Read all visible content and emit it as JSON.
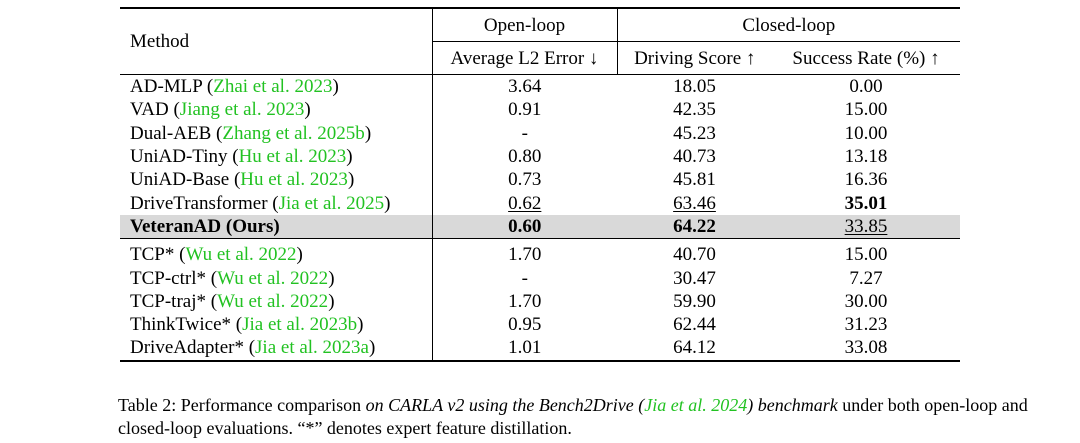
{
  "table": {
    "header": {
      "method": "Method",
      "open_loop": "Open-loop",
      "closed_loop": "Closed-loop",
      "columns": [
        "Average L2 Error ↓",
        "Driving Score ↑",
        "Success Rate (%) ↑"
      ]
    },
    "rows": [
      {
        "name": "AD-MLP (",
        "cite": "Zhai et al. 2023",
        "close": ")",
        "values": [
          "3.64",
          "18.05",
          "0.00"
        ]
      },
      {
        "name": "VAD (",
        "cite": "Jiang et al. 2023",
        "close": ")",
        "values": [
          "0.91",
          "42.35",
          "15.00"
        ]
      },
      {
        "name": "Dual-AEB (",
        "cite": "Zhang et al. 2025b",
        "close": ")",
        "values": [
          "-",
          "45.23",
          "10.00"
        ]
      },
      {
        "name": "UniAD-Tiny (",
        "cite": "Hu et al. 2023",
        "close": ")",
        "values": [
          "0.80",
          "40.73",
          "13.18"
        ]
      },
      {
        "name": "UniAD-Base (",
        "cite": "Hu et al. 2023",
        "close": ")",
        "values": [
          "0.73",
          "45.81",
          "16.36"
        ]
      },
      {
        "name": "DriveTransformer (",
        "cite": "Jia et al. 2025",
        "close": ")",
        "values": [
          "0.62",
          "63.46",
          "35.01"
        ]
      },
      {
        "name": "VeteranAD (Ours)",
        "values": [
          "0.60",
          "64.22",
          "33.85"
        ]
      },
      {
        "name": "TCP* (",
        "cite": "Wu et al. 2022",
        "close": ")",
        "values": [
          "1.70",
          "40.70",
          "15.00"
        ]
      },
      {
        "name": "TCP-ctrl* (",
        "cite": "Wu et al. 2022",
        "close": ")",
        "values": [
          "-",
          "30.47",
          "7.27"
        ]
      },
      {
        "name": "TCP-traj* (",
        "cite": "Wu et al. 2022",
        "close": ")",
        "values": [
          "1.70",
          "59.90",
          "30.00"
        ]
      },
      {
        "name": "ThinkTwice* (",
        "cite": "Jia et al. 2023b",
        "close": ")",
        "values": [
          "0.95",
          "62.44",
          "31.23"
        ]
      },
      {
        "name": "DriveAdapter* (",
        "cite": "Jia et al. 2023a",
        "close": ")",
        "values": [
          "1.01",
          "64.12",
          "33.08"
        ]
      }
    ]
  },
  "caption": {
    "parts": [
      "Table 2: Performance comparison ",
      "on CARLA v2 using the Bench2Drive (",
      "Jia et al. 2024",
      ") benchmark",
      " under both open-loop and closed-loop evaluations. “*” denotes expert feature distillation."
    ]
  }
}
